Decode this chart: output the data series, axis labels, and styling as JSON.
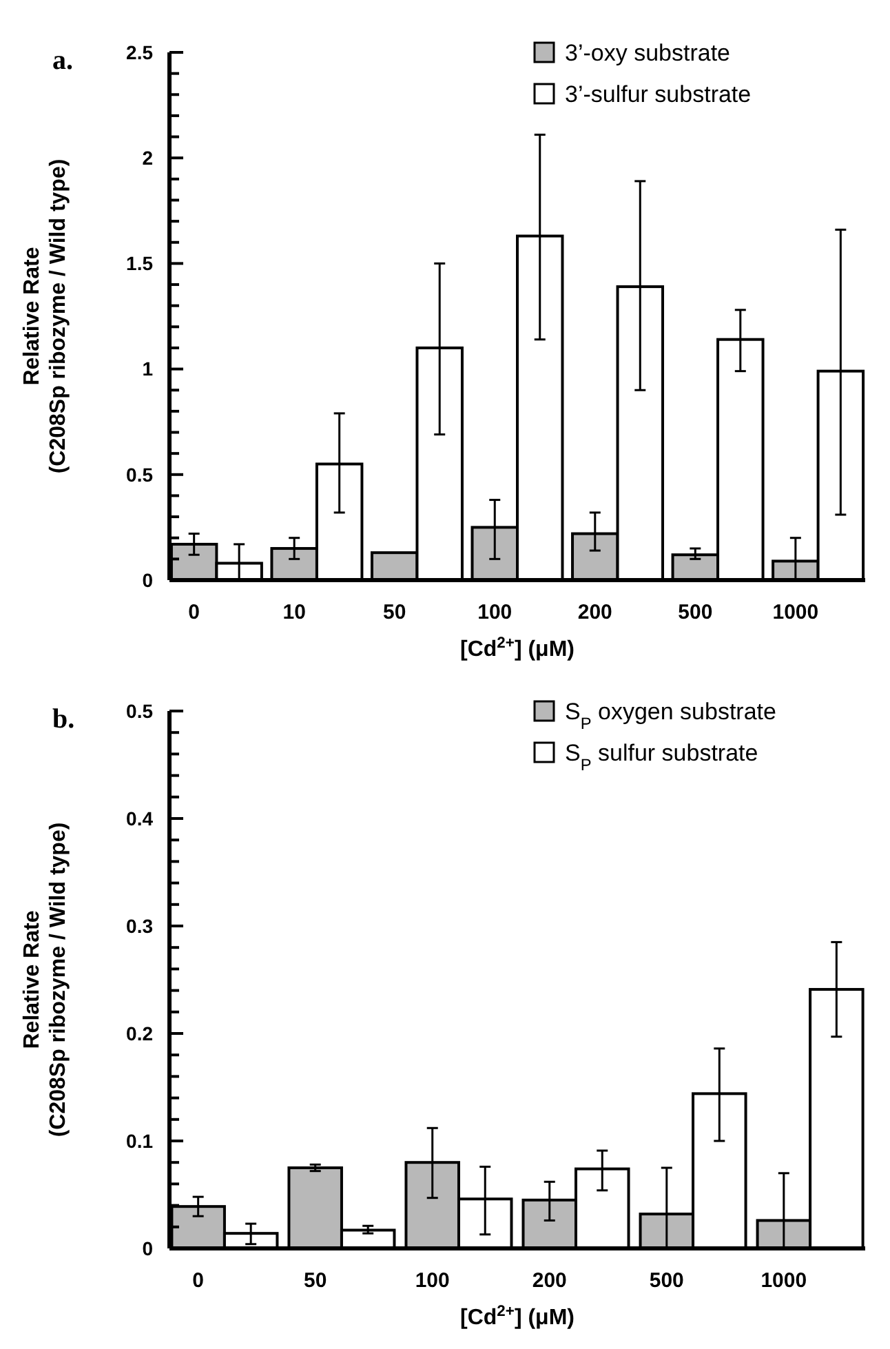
{
  "chart_data": [
    {
      "type": "bar",
      "title": "a.",
      "xlabel": "[Cd$^{2+}$] (μM)",
      "ylabel": "Relative Rate\n(C208Sp ribozyme / Wild type)",
      "categories": [
        "0",
        "10",
        "50",
        "100",
        "200",
        "500",
        "1000"
      ],
      "ylim": [
        0,
        2.5
      ],
      "yticks": [
        0,
        {
          "value": 0.1,
          "label": null
        },
        {
          "value": 0.2,
          "label": null
        },
        {
          "value": 0.3,
          "label": null
        },
        {
          "value": 0.4,
          "label": null
        },
        {
          "value": 0.5,
          "label": "0.5"
        },
        {
          "value": 0.6,
          "label": null
        },
        {
          "value": 0.7,
          "label": null
        },
        {
          "value": 0.8,
          "label": null
        },
        {
          "value": 0.9,
          "label": null
        },
        1,
        {
          "value": 1.1,
          "label": null
        },
        {
          "value": 1.2,
          "label": null
        },
        {
          "value": 1.3,
          "label": null
        },
        {
          "value": 1.4,
          "label": null
        },
        1.5,
        {
          "value": 1.6,
          "label": null
        },
        {
          "value": 1.7,
          "label": null
        },
        {
          "value": 1.8,
          "label": null
        },
        {
          "value": 1.9,
          "label": null
        },
        2,
        {
          "value": 2.1,
          "label": null
        },
        {
          "value": 2.2,
          "label": null
        },
        {
          "value": 2.3,
          "label": null
        },
        {
          "value": 2.4,
          "label": null
        },
        2.5
      ],
      "legend": "top right",
      "series": [
        {
          "name": "3’-oxy substrate",
          "color": "#b8b8b8",
          "values": [
            0.17,
            0.15,
            0.13,
            0.25,
            0.22,
            0.12,
            0.09
          ],
          "errors": [
            [
              0.12,
              0.22
            ],
            [
              0.1,
              0.2
            ],
            null,
            [
              0.1,
              0.38
            ],
            [
              0.14,
              0.32
            ],
            [
              0.1,
              0.15
            ],
            [
              0,
              0.2
            ]
          ]
        },
        {
          "name": "3’-sulfur substrate",
          "color": "#ffffff",
          "values": [
            0.08,
            0.55,
            1.1,
            1.63,
            1.39,
            1.14,
            0.99
          ],
          "errors": [
            [
              0,
              0.17
            ],
            [
              0.32,
              0.79
            ],
            [
              0.69,
              1.5
            ],
            [
              1.14,
              2.11
            ],
            [
              0.9,
              1.89
            ],
            [
              0.99,
              1.28
            ],
            [
              0.31,
              1.66
            ]
          ]
        }
      ]
    },
    {
      "type": "bar",
      "title": "b.",
      "xlabel": "[Cd$^{2+}$] (μM)",
      "ylabel": "Relative Rate\n(C208Sp ribozyme / Wild type)",
      "categories": [
        "0",
        "50",
        "100",
        "200",
        "500",
        "1000"
      ],
      "ylim": [
        0,
        0.5
      ],
      "yticks": [
        0,
        {
          "value": 0.02,
          "label": null
        },
        {
          "value": 0.04,
          "label": null
        },
        {
          "value": 0.06,
          "label": null
        },
        {
          "value": 0.08,
          "label": null
        },
        0.1,
        {
          "value": 0.12,
          "label": null
        },
        {
          "value": 0.14,
          "label": null
        },
        {
          "value": 0.16,
          "label": null
        },
        {
          "value": 0.18,
          "label": null
        },
        0.2,
        {
          "value": 0.22,
          "label": null
        },
        {
          "value": 0.24,
          "label": null
        },
        {
          "value": 0.26,
          "label": null
        },
        {
          "value": 0.28,
          "label": null
        },
        0.3,
        {
          "value": 0.32,
          "label": null
        },
        {
          "value": 0.34,
          "label": null
        },
        {
          "value": 0.36,
          "label": null
        },
        {
          "value": 0.38,
          "label": null
        },
        0.4,
        {
          "value": 0.42,
          "label": null
        },
        {
          "value": 0.44,
          "label": null
        },
        {
          "value": 0.46,
          "label": null
        },
        {
          "value": 0.48,
          "label": null
        },
        0.5
      ],
      "legend": "top right",
      "series": [
        {
          "name": "S$_{P}$ oxygen substrate",
          "color": "#b8b8b8",
          "values": [
            0.039,
            0.075,
            0.08,
            0.045,
            0.032,
            0.026
          ],
          "errors": [
            [
              0.03,
              0.048
            ],
            [
              0.072,
              0.078
            ],
            [
              0.047,
              0.112
            ],
            [
              0.026,
              0.062
            ],
            [
              0,
              0.075
            ],
            [
              0,
              0.07
            ]
          ]
        },
        {
          "name": "S$_{P}$ sulfur substrate",
          "color": "#ffffff",
          "values": [
            0.014,
            0.017,
            0.046,
            0.074,
            0.144,
            0.241
          ],
          "errors": [
            [
              0.004,
              0.023
            ],
            [
              0.014,
              0.021
            ],
            [
              0.013,
              0.076
            ],
            [
              0.054,
              0.091
            ],
            [
              0.1,
              0.186
            ],
            [
              0.197,
              0.285
            ]
          ]
        }
      ]
    }
  ]
}
